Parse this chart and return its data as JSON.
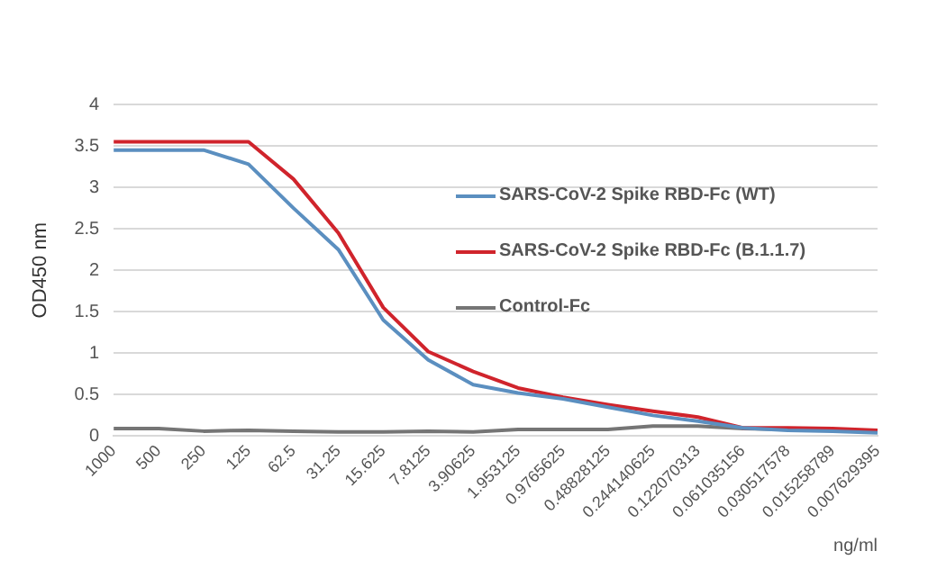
{
  "chart_data": {
    "type": "line",
    "ylabel": "OD450 nm",
    "xlabel": "ng/ml",
    "categories": [
      "1000",
      "500",
      "250",
      "125",
      "62.5",
      "31.25",
      "15.625",
      "7.8125",
      "3.90625",
      "1.953125",
      "0.9765625",
      "0.48828125",
      "0.244140625",
      "0.122070313",
      "0.061035156",
      "0.030517578",
      "0.015258789",
      "0.007629395"
    ],
    "series": [
      {
        "name": "SARS-CoV-2 Spike RBD-Fc (WT)",
        "color": "#5b8fc0",
        "values": [
          3.45,
          3.45,
          3.45,
          3.28,
          2.75,
          2.25,
          1.4,
          0.92,
          0.62,
          0.52,
          0.45,
          0.35,
          0.25,
          0.18,
          0.1,
          0.07,
          0.06,
          0.04
        ]
      },
      {
        "name": "SARS-CoV-2 Spike RBD-Fc (B.1.1.7)",
        "color": "#d0242c",
        "values": [
          3.55,
          3.55,
          3.55,
          3.55,
          3.1,
          2.45,
          1.55,
          1.02,
          0.78,
          0.58,
          0.47,
          0.38,
          0.3,
          0.23,
          0.1,
          0.1,
          0.09,
          0.07
        ]
      },
      {
        "name": "Control-Fc",
        "color": "#757575",
        "values": [
          0.09,
          0.09,
          0.06,
          0.07,
          0.06,
          0.05,
          0.05,
          0.06,
          0.05,
          0.08,
          0.08,
          0.08,
          0.12,
          0.12,
          0.09,
          0.08,
          0.07,
          0.06
        ]
      }
    ],
    "ylim": [
      0,
      4
    ],
    "yticks": [
      0,
      0.5,
      1,
      1.5,
      2,
      2.5,
      3,
      3.5,
      4
    ],
    "grid": "y",
    "legend": "right",
    "marker": "none",
    "line_style": "solid"
  }
}
